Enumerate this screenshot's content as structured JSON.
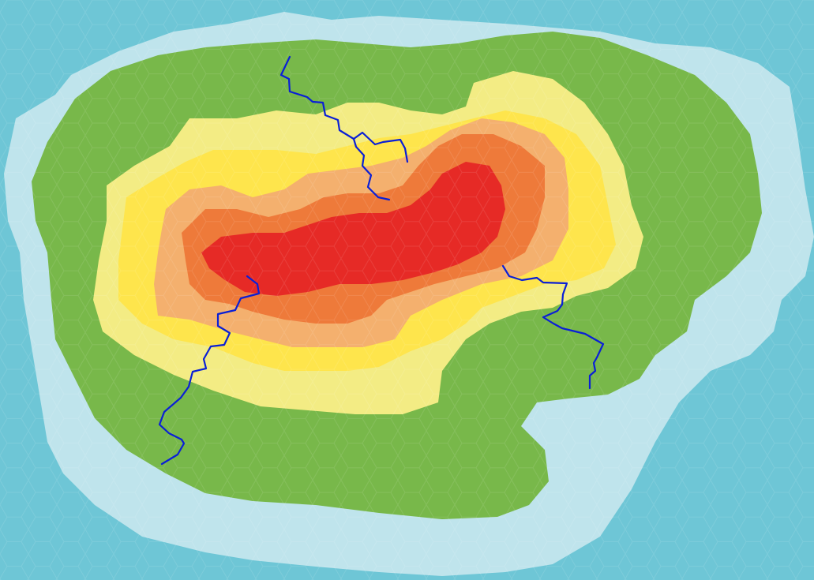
{
  "map": {
    "colors": {
      "deep_water": "#6ec6d6",
      "shallow_water": "#bfe4ec",
      "lowland": "#78b84a",
      "hills_pale": "#f3ec84",
      "hills": "#fee54c",
      "uplands": "#f4b06e",
      "mountains": "#ee7a3a",
      "peaks": "#e62a26",
      "river": "#0a1fd6",
      "hex_edge": "#ffffff"
    },
    "terrain_bands": [
      "deep_water",
      "shallow_water",
      "lowland",
      "hills_pale",
      "hills",
      "uplands",
      "mountains",
      "peaks"
    ],
    "rivers": [
      {
        "id": "north-river",
        "source_band": "hills_pale",
        "mouth_band": "shallow_water"
      },
      {
        "id": "southwest-river",
        "source_band": "peaks",
        "mouth_band": "shallow_water"
      },
      {
        "id": "east-river",
        "source_band": "mountains",
        "mouth_band": "shallow_water"
      }
    ]
  }
}
